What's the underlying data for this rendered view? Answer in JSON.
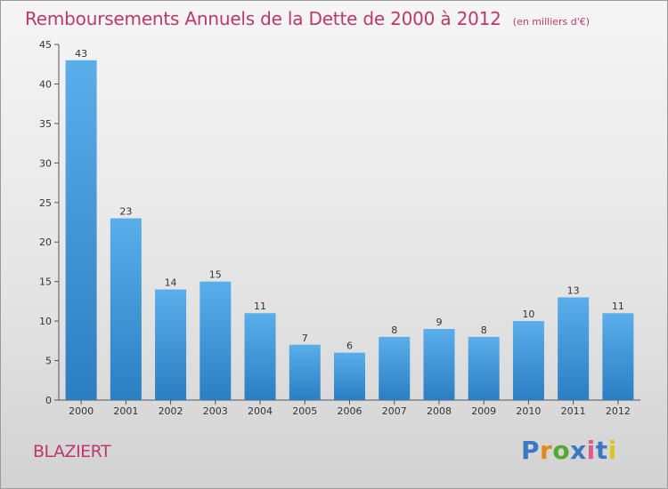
{
  "header": {
    "title": "Remboursements Annuels de la Dette de 2000 à 2012",
    "subtitle": "(en milliers d'€)"
  },
  "footer": {
    "commune": "BLAZIERT",
    "logo_text": "Proxiti",
    "logo_colors": [
      "#3b78c4",
      "#e08a1e",
      "#55a832",
      "#3b78c4",
      "#e05a8a",
      "#3b78c4",
      "#e2c21c"
    ]
  },
  "colors": {
    "accent": "#c0386a",
    "bar_top": "#5aaeea",
    "bar_bottom": "#2b7ec2"
  },
  "chart_data": {
    "type": "bar",
    "title": "Remboursements Annuels de la Dette de 2000 à 2012",
    "subtitle": "(en milliers d'€)",
    "xlabel": "",
    "ylabel": "",
    "categories": [
      "2000",
      "2001",
      "2002",
      "2003",
      "2004",
      "2005",
      "2006",
      "2007",
      "2008",
      "2009",
      "2010",
      "2011",
      "2012"
    ],
    "values": [
      43,
      23,
      14,
      15,
      11,
      7,
      6,
      8,
      9,
      8,
      10,
      13,
      11
    ],
    "ylim": [
      0,
      45
    ],
    "yticks": [
      0,
      5,
      10,
      15,
      20,
      25,
      30,
      35,
      40,
      45
    ],
    "grid": false,
    "legend": "none"
  }
}
